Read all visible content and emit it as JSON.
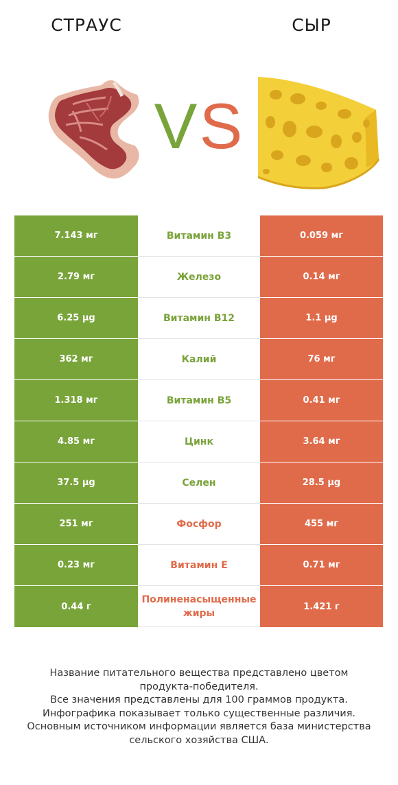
{
  "header": {
    "left_title": "СТРАУС",
    "right_title": "СЫР",
    "vs_left": "V",
    "vs_right": "S"
  },
  "colors": {
    "left_winner": "#79a43a",
    "right_winner": "#e06b4b"
  },
  "rows": [
    {
      "left": "7.143 мг",
      "nutrient": "Витамин B3",
      "right": "0.059 мг",
      "winner": "left"
    },
    {
      "left": "2.79 мг",
      "nutrient": "Железо",
      "right": "0.14 мг",
      "winner": "left"
    },
    {
      "left": "6.25 µg",
      "nutrient": "Витамин B12",
      "right": "1.1 µg",
      "winner": "left"
    },
    {
      "left": "362 мг",
      "nutrient": "Калий",
      "right": "76 мг",
      "winner": "left"
    },
    {
      "left": "1.318 мг",
      "nutrient": "Витамин B5",
      "right": "0.41 мг",
      "winner": "left"
    },
    {
      "left": "4.85 мг",
      "nutrient": "Цинк",
      "right": "3.64 мг",
      "winner": "left"
    },
    {
      "left": "37.5 µg",
      "nutrient": "Селен",
      "right": "28.5 µg",
      "winner": "left"
    },
    {
      "left": "251 мг",
      "nutrient": "Фосфор",
      "right": "455 мг",
      "winner": "right"
    },
    {
      "left": "0.23 мг",
      "nutrient": "Витамин E",
      "right": "0.71 мг",
      "winner": "right"
    },
    {
      "left": "0.44 г",
      "nutrient": "Полиненасыщенные жиры",
      "right": "1.421 г",
      "winner": "right"
    }
  ],
  "footer": {
    "line1": "Название питательного вещества представлено цветом",
    "line2": "продукта-победителя.",
    "line3": "Все значения представлены для 100 граммов продукта.",
    "line4": "Инфографика показывает только существенные различия.",
    "line5": "Основным источником информации является база министерства",
    "line6": "сельского хозяйства США."
  }
}
